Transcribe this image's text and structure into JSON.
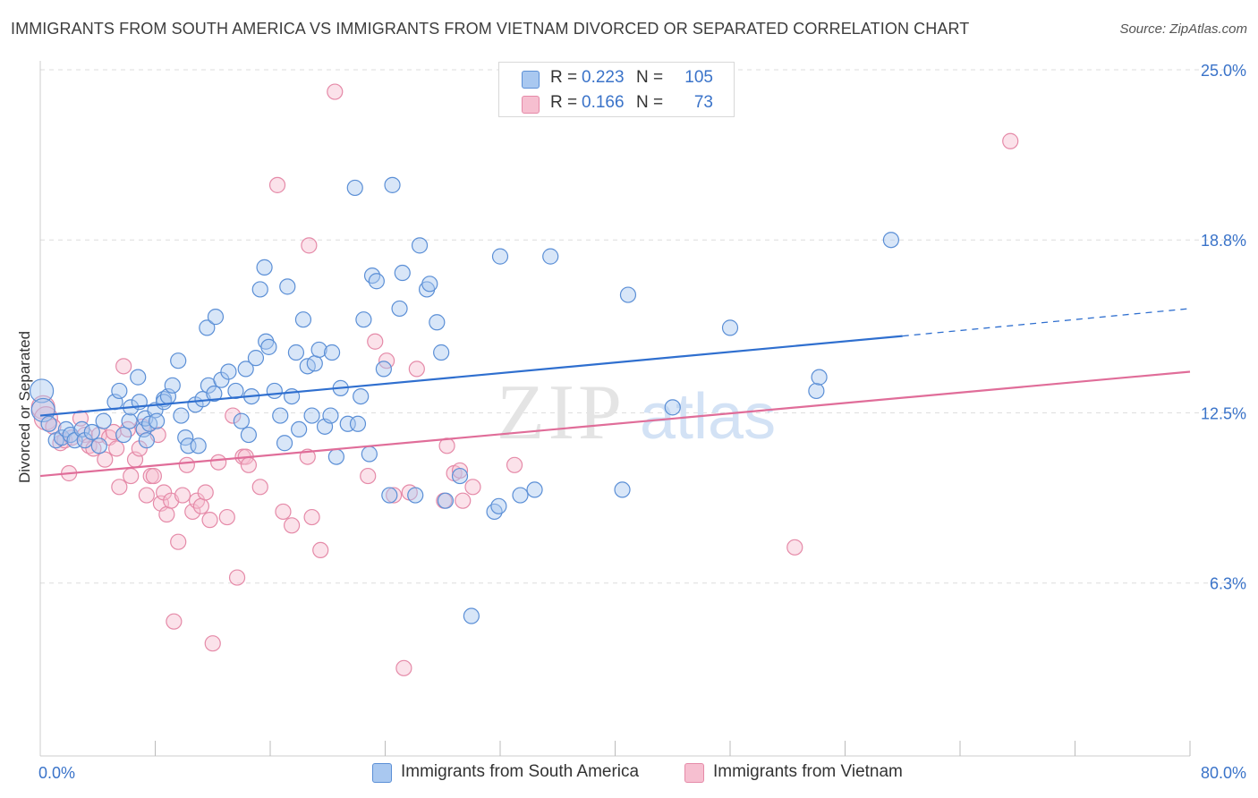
{
  "title": "IMMIGRANTS FROM SOUTH AMERICA VS IMMIGRANTS FROM VIETNAM DIVORCED OR SEPARATED CORRELATION CHART",
  "source": "Source: ZipAtlas.com",
  "watermark": {
    "zip": "ZIP",
    "atlas": "atlas"
  },
  "legend": {
    "rows": [
      {
        "r_label": "R =",
        "r_value": "0.223",
        "n_label": "N =",
        "n_value": "105"
      },
      {
        "r_label": "R =",
        "r_value": "0.166",
        "n_label": "N =",
        "n_value": "73"
      }
    ]
  },
  "bottom_legend": [
    "Immigrants from South America",
    "Immigrants from Vietnam"
  ],
  "colors": {
    "blue_fill": "#a9c8f0",
    "blue_stroke": "#5b8fd6",
    "blue_line": "#2f6fcf",
    "pink_fill": "#f6bfd0",
    "pink_stroke": "#e58aa8",
    "pink_line": "#e06d99",
    "tick_text": "#3a73c9",
    "grid": "#dddddd"
  },
  "chart_data": {
    "type": "scatter",
    "title": "IMMIGRANTS FROM SOUTH AMERICA VS IMMIGRANTS FROM VIETNAM DIVORCED OR SEPARATED CORRELATION CHART",
    "xlabel": "",
    "ylabel": "Divorced or Separated",
    "xlim": [
      0,
      80
    ],
    "ylim": [
      0,
      25
    ],
    "x_tick_labels": [
      "0.0%",
      "80.0%"
    ],
    "y_ticks": [
      {
        "value": 25.0,
        "label": "25.0%"
      },
      {
        "value": 18.8,
        "label": "18.8%"
      },
      {
        "value": 12.5,
        "label": "12.5%"
      },
      {
        "value": 6.3,
        "label": "6.3%"
      }
    ],
    "grid": true,
    "legend_position": "top-center",
    "series": [
      {
        "name": "Immigrants from South America",
        "color": "#5b8fd6",
        "r": 0.223,
        "n": 105,
        "trend": {
          "x0": 0,
          "y0": 12.4,
          "x1_solid": 60,
          "y1_solid": 15.3,
          "x1": 80,
          "y1": 16.3
        },
        "points": [
          [
            0.1,
            13.3
          ],
          [
            0.2,
            12.6
          ],
          [
            0.6,
            12.1
          ],
          [
            1.1,
            11.5
          ],
          [
            1.5,
            11.6
          ],
          [
            1.8,
            11.9
          ],
          [
            2.1,
            11.7
          ],
          [
            2.4,
            11.5
          ],
          [
            2.9,
            11.9
          ],
          [
            3.1,
            11.5
          ],
          [
            3.6,
            11.8
          ],
          [
            4.1,
            11.3
          ],
          [
            4.4,
            12.2
          ],
          [
            5.2,
            12.9
          ],
          [
            5.5,
            13.3
          ],
          [
            5.8,
            11.7
          ],
          [
            6.2,
            12.2
          ],
          [
            6.3,
            12.7
          ],
          [
            6.8,
            13.8
          ],
          [
            6.9,
            12.9
          ],
          [
            7.2,
            11.9
          ],
          [
            7.3,
            12.3
          ],
          [
            7.4,
            11.5
          ],
          [
            7.6,
            12.1
          ],
          [
            8.0,
            12.6
          ],
          [
            8.1,
            12.2
          ],
          [
            8.6,
            13.0
          ],
          [
            8.6,
            12.9
          ],
          [
            8.9,
            13.1
          ],
          [
            9.2,
            13.5
          ],
          [
            9.6,
            14.4
          ],
          [
            9.8,
            12.4
          ],
          [
            10.1,
            11.6
          ],
          [
            10.3,
            11.3
          ],
          [
            10.8,
            12.8
          ],
          [
            11.0,
            11.3
          ],
          [
            11.3,
            13.0
          ],
          [
            11.6,
            15.6
          ],
          [
            11.7,
            13.5
          ],
          [
            12.1,
            13.2
          ],
          [
            12.2,
            16.0
          ],
          [
            12.6,
            13.7
          ],
          [
            13.1,
            14.0
          ],
          [
            13.6,
            13.3
          ],
          [
            14.0,
            12.2
          ],
          [
            14.3,
            14.1
          ],
          [
            14.5,
            11.7
          ],
          [
            14.7,
            13.1
          ],
          [
            15.0,
            14.5
          ],
          [
            15.3,
            17.0
          ],
          [
            15.6,
            17.8
          ],
          [
            15.7,
            15.1
          ],
          [
            15.9,
            14.9
          ],
          [
            16.3,
            13.3
          ],
          [
            16.7,
            12.4
          ],
          [
            17.0,
            11.4
          ],
          [
            17.2,
            17.1
          ],
          [
            17.5,
            13.1
          ],
          [
            17.8,
            14.7
          ],
          [
            18.0,
            11.9
          ],
          [
            18.3,
            15.9
          ],
          [
            18.6,
            14.2
          ],
          [
            18.9,
            12.4
          ],
          [
            19.1,
            14.3
          ],
          [
            19.4,
            14.8
          ],
          [
            19.8,
            12.0
          ],
          [
            20.2,
            12.4
          ],
          [
            20.3,
            14.7
          ],
          [
            20.6,
            10.9
          ],
          [
            20.9,
            13.4
          ],
          [
            21.4,
            12.1
          ],
          [
            21.9,
            20.7
          ],
          [
            22.1,
            12.1
          ],
          [
            22.3,
            13.1
          ],
          [
            22.5,
            15.9
          ],
          [
            22.9,
            11.0
          ],
          [
            23.1,
            17.5
          ],
          [
            23.4,
            17.3
          ],
          [
            23.9,
            14.1
          ],
          [
            24.3,
            9.5
          ],
          [
            24.5,
            20.8
          ],
          [
            25.0,
            16.3
          ],
          [
            25.2,
            17.6
          ],
          [
            26.1,
            9.5
          ],
          [
            26.4,
            18.6
          ],
          [
            26.9,
            17.0
          ],
          [
            27.1,
            17.2
          ],
          [
            27.6,
            15.8
          ],
          [
            27.9,
            14.7
          ],
          [
            28.2,
            9.3
          ],
          [
            29.2,
            10.2
          ],
          [
            30.0,
            5.1
          ],
          [
            31.6,
            8.9
          ],
          [
            31.9,
            9.1
          ],
          [
            32.0,
            18.2
          ],
          [
            33.4,
            9.5
          ],
          [
            34.4,
            9.7
          ],
          [
            35.5,
            18.2
          ],
          [
            40.5,
            9.7
          ],
          [
            40.9,
            16.8
          ],
          [
            44.0,
            12.7
          ],
          [
            48.0,
            15.6
          ],
          [
            54.0,
            13.3
          ],
          [
            54.2,
            13.8
          ],
          [
            59.2,
            18.8
          ]
        ]
      },
      {
        "name": "Immigrants from Vietnam",
        "color": "#e58aa8",
        "r": 0.166,
        "n": 73,
        "trend": {
          "x0": 0,
          "y0": 10.2,
          "x1": 80,
          "y1": 14.0
        },
        "points": [
          [
            0.2,
            12.7
          ],
          [
            0.4,
            12.3
          ],
          [
            0.9,
            12.0
          ],
          [
            1.4,
            11.4
          ],
          [
            1.7,
            11.5
          ],
          [
            2.0,
            10.3
          ],
          [
            2.2,
            11.6
          ],
          [
            2.8,
            12.3
          ],
          [
            3.1,
            11.7
          ],
          [
            3.4,
            11.3
          ],
          [
            3.7,
            11.2
          ],
          [
            4.1,
            11.7
          ],
          [
            4.5,
            10.8
          ],
          [
            4.8,
            11.6
          ],
          [
            5.1,
            11.8
          ],
          [
            5.3,
            11.2
          ],
          [
            5.5,
            9.8
          ],
          [
            5.8,
            14.2
          ],
          [
            6.1,
            11.9
          ],
          [
            6.3,
            10.2
          ],
          [
            6.6,
            10.8
          ],
          [
            6.9,
            11.2
          ],
          [
            7.1,
            12.0
          ],
          [
            7.4,
            9.5
          ],
          [
            7.7,
            10.2
          ],
          [
            7.9,
            10.2
          ],
          [
            8.2,
            11.7
          ],
          [
            8.4,
            9.2
          ],
          [
            8.6,
            9.6
          ],
          [
            8.8,
            8.8
          ],
          [
            9.1,
            9.3
          ],
          [
            9.3,
            4.9
          ],
          [
            9.6,
            7.8
          ],
          [
            9.9,
            9.5
          ],
          [
            10.2,
            10.6
          ],
          [
            10.6,
            8.9
          ],
          [
            10.9,
            9.3
          ],
          [
            11.2,
            9.1
          ],
          [
            11.5,
            9.6
          ],
          [
            11.8,
            8.6
          ],
          [
            12.0,
            4.1
          ],
          [
            12.4,
            10.7
          ],
          [
            13.0,
            8.7
          ],
          [
            13.4,
            12.4
          ],
          [
            13.7,
            6.5
          ],
          [
            14.1,
            10.9
          ],
          [
            14.3,
            10.9
          ],
          [
            14.5,
            10.6
          ],
          [
            15.3,
            9.8
          ],
          [
            16.5,
            20.8
          ],
          [
            16.9,
            8.9
          ],
          [
            17.5,
            8.4
          ],
          [
            18.6,
            10.9
          ],
          [
            18.7,
            18.6
          ],
          [
            18.9,
            8.7
          ],
          [
            19.5,
            7.5
          ],
          [
            20.5,
            24.2
          ],
          [
            22.8,
            10.2
          ],
          [
            23.3,
            15.1
          ],
          [
            24.1,
            14.4
          ],
          [
            24.6,
            9.5
          ],
          [
            25.3,
            3.2
          ],
          [
            25.7,
            9.6
          ],
          [
            26.2,
            14.1
          ],
          [
            28.1,
            9.3
          ],
          [
            28.3,
            11.3
          ],
          [
            28.8,
            10.3
          ],
          [
            29.2,
            10.4
          ],
          [
            30.1,
            9.8
          ],
          [
            33.0,
            10.6
          ],
          [
            52.5,
            7.6
          ],
          [
            67.5,
            22.4
          ],
          [
            29.4,
            9.3
          ]
        ]
      }
    ]
  }
}
